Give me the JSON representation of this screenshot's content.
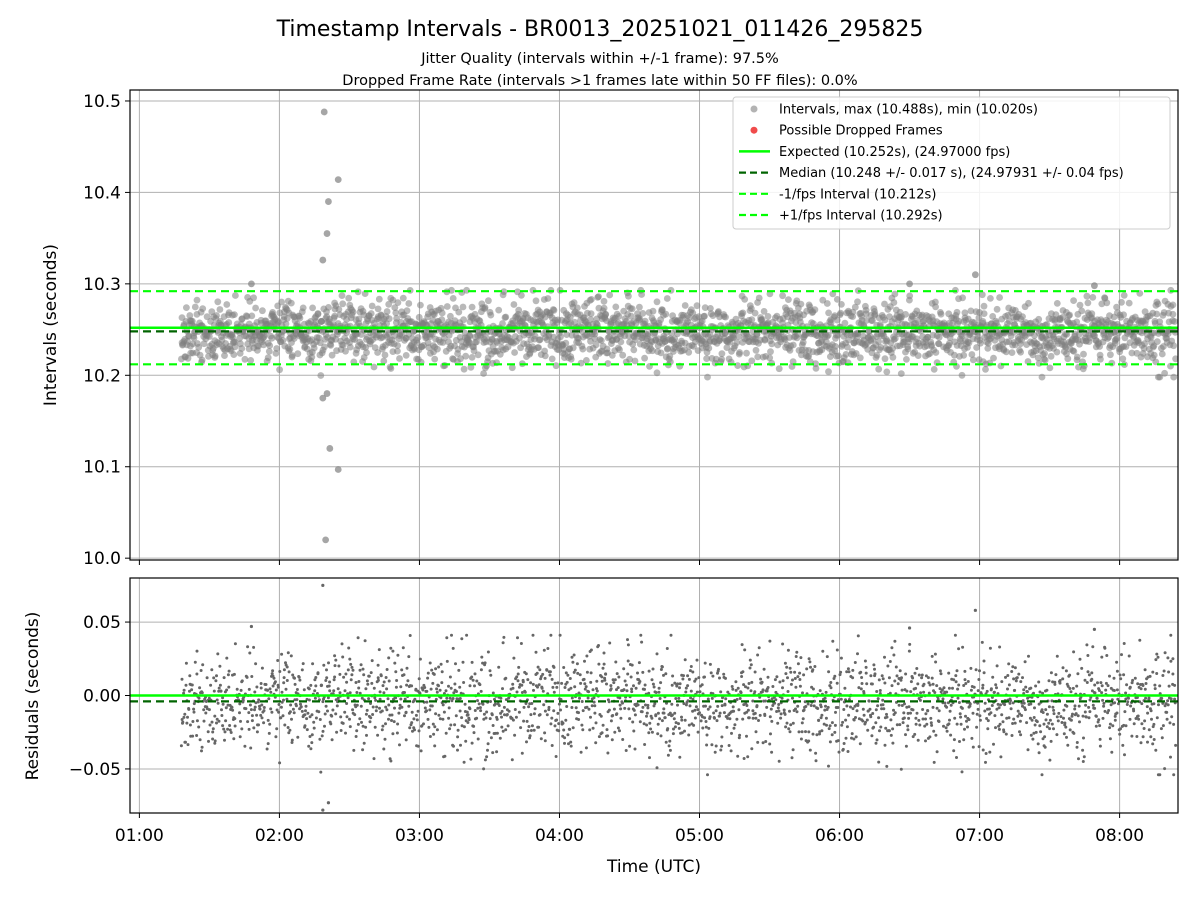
{
  "chart_data": {
    "type": "scatter",
    "title": "Timestamp Intervals - BR0013_20251021_011426_295825",
    "subtitle_lines": [
      "Jitter Quality (intervals within +/-1 frame): 97.5%",
      "Dropped Frame Rate (intervals >1 frames late within 50 FF files): 0.0%"
    ],
    "xlabel": "Time (UTC)",
    "x_unit": "hours UTC",
    "xlim": [
      0.933,
      8.417
    ],
    "x_ticks": [
      1,
      2,
      3,
      4,
      5,
      6,
      7,
      8
    ],
    "x_tick_labels": [
      "01:00",
      "02:00",
      "03:00",
      "04:00",
      "05:00",
      "06:00",
      "07:00",
      "08:00"
    ],
    "data_start_hour": 1.3,
    "data_end_hour": 8.4,
    "point_count": 2400,
    "colors": {
      "points": "#808080",
      "dropped": "#f04b4b",
      "expected": "#00ff00",
      "median": "#006400",
      "fps_bounds": "#00ff00",
      "grid": "#b0b0b0",
      "axes": "#000000"
    },
    "legend": {
      "position": "top-right",
      "entries": [
        {
          "label": "Intervals, max (10.488s), min (10.020s)",
          "kind": "dot-gray"
        },
        {
          "label": "Possible Dropped Frames",
          "kind": "dot-red"
        },
        {
          "label": "Expected (10.252s), (24.97000 fps)",
          "kind": "solid-green"
        },
        {
          "label": "Median (10.248 +/- 0.017 s), (24.97931 +/- 0.04 fps)",
          "kind": "dashed-darkgreen"
        },
        {
          "label": "-1/fps Interval (10.212s)",
          "kind": "dashed-green"
        },
        {
          "label": "+1/fps Interval (10.292s)",
          "kind": "dashed-green"
        }
      ]
    },
    "intervals_panel": {
      "ylabel": "Intervals (seconds)",
      "ylim": [
        9.998,
        10.512
      ],
      "y_ticks": [
        10.0,
        10.1,
        10.2,
        10.3,
        10.4,
        10.5
      ],
      "y_tick_labels": [
        "10.0",
        "10.1",
        "10.2",
        "10.3",
        "10.4",
        "10.5"
      ],
      "expected": 10.252,
      "median": 10.248,
      "median_std": 0.017,
      "minus_fps": 10.212,
      "plus_fps": 10.292,
      "max": 10.488,
      "min": 10.02,
      "outliers": [
        {
          "x": 2.32,
          "y": 10.488
        },
        {
          "x": 2.42,
          "y": 10.414
        },
        {
          "x": 2.35,
          "y": 10.39
        },
        {
          "x": 2.34,
          "y": 10.355
        },
        {
          "x": 2.31,
          "y": 10.326
        },
        {
          "x": 2.31,
          "y": 10.175
        },
        {
          "x": 2.34,
          "y": 10.18
        },
        {
          "x": 2.36,
          "y": 10.12
        },
        {
          "x": 2.42,
          "y": 10.097
        },
        {
          "x": 2.33,
          "y": 10.02
        },
        {
          "x": 6.97,
          "y": 10.31
        },
        {
          "x": 7.82,
          "y": 10.298
        },
        {
          "x": 6.5,
          "y": 10.3
        },
        {
          "x": 1.8,
          "y": 10.3
        }
      ]
    },
    "residuals_panel": {
      "ylabel": "Residuals (seconds)",
      "ylim": [
        -0.08,
        0.08
      ],
      "y_ticks": [
        -0.05,
        0.0,
        0.05
      ],
      "y_tick_labels": [
        "−0.05",
        "0.00",
        "0.05"
      ],
      "expected": 0.0,
      "median": -0.004,
      "outliers": [
        {
          "x": 2.31,
          "y": 0.075
        },
        {
          "x": 2.35,
          "y": -0.073
        },
        {
          "x": 2.31,
          "y": -0.078
        },
        {
          "x": 6.97,
          "y": 0.058
        },
        {
          "x": 7.82,
          "y": 0.045
        },
        {
          "x": 6.5,
          "y": 0.046
        },
        {
          "x": 1.8,
          "y": 0.047
        }
      ]
    }
  }
}
